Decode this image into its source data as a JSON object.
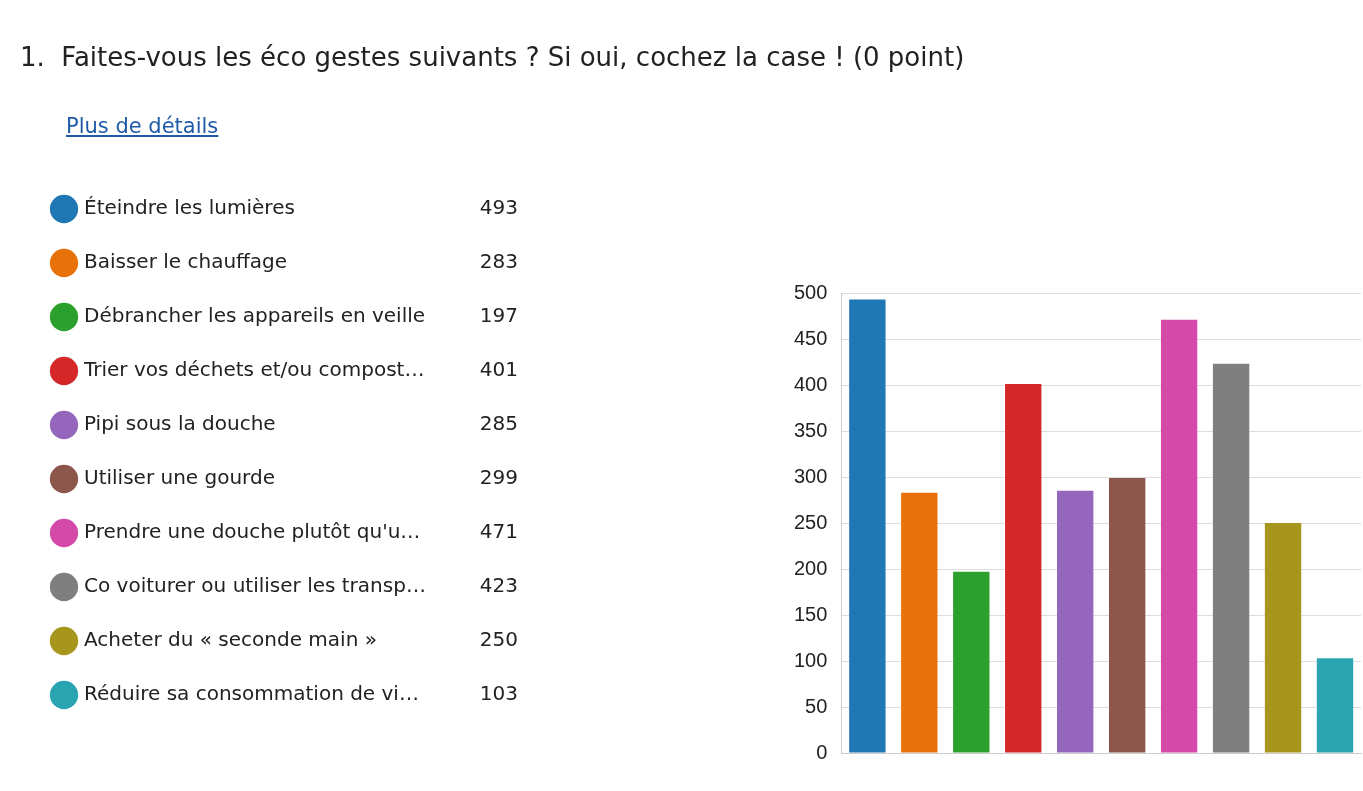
{
  "chart_data": {
    "type": "bar",
    "title": "1.  Faites-vous les éco gestes suivants ? Si oui, cochez la case ! (0 point)",
    "annotations": [
      "Plus de détails",
      "493",
      "283",
      "197",
      "401",
      "285",
      "299",
      "471",
      "423",
      "250",
      "103"
    ],
    "categories": [
      null
    ],
    "series": [
      {
        "name": "Éteindre les lumières",
        "color": "#1f77b4",
        "values": [
          493
        ]
      },
      {
        "name": "Baisser le chauffage",
        "color": "#e8710a",
        "values": [
          283
        ]
      },
      {
        "name": "Débrancher les appareils en veille",
        "color": "#2ca02c",
        "values": [
          197
        ]
      },
      {
        "name": "Trier vos déchets et/ou compost…",
        "color": "#d62728",
        "values": [
          401
        ]
      },
      {
        "name": "Pipi sous la douche",
        "color": "#9467bd",
        "values": [
          285
        ]
      },
      {
        "name": "Utiliser une gourde",
        "color": "#8c564b",
        "values": [
          299
        ]
      },
      {
        "name": "Prendre une douche plutôt qu'u…",
        "color": "#d54aa8",
        "values": [
          471
        ]
      },
      {
        "name": "Co voiturer ou utiliser les transp…",
        "color": "#7f7f7f",
        "values": [
          423
        ]
      },
      {
        "name": "Acheter du « seconde main »",
        "color": "#a6961c",
        "values": [
          250
        ]
      },
      {
        "name": "Réduire sa consommation de vi…",
        "color": "#2aa4b0",
        "values": [
          103
        ]
      }
    ],
    "ylim": [
      0,
      500
    ],
    "yticks": [
      0,
      50,
      100,
      150,
      200,
      250,
      300,
      350,
      400,
      450,
      500
    ],
    "grid": "y",
    "legend": "left",
    "tick_labels": "y"
  }
}
